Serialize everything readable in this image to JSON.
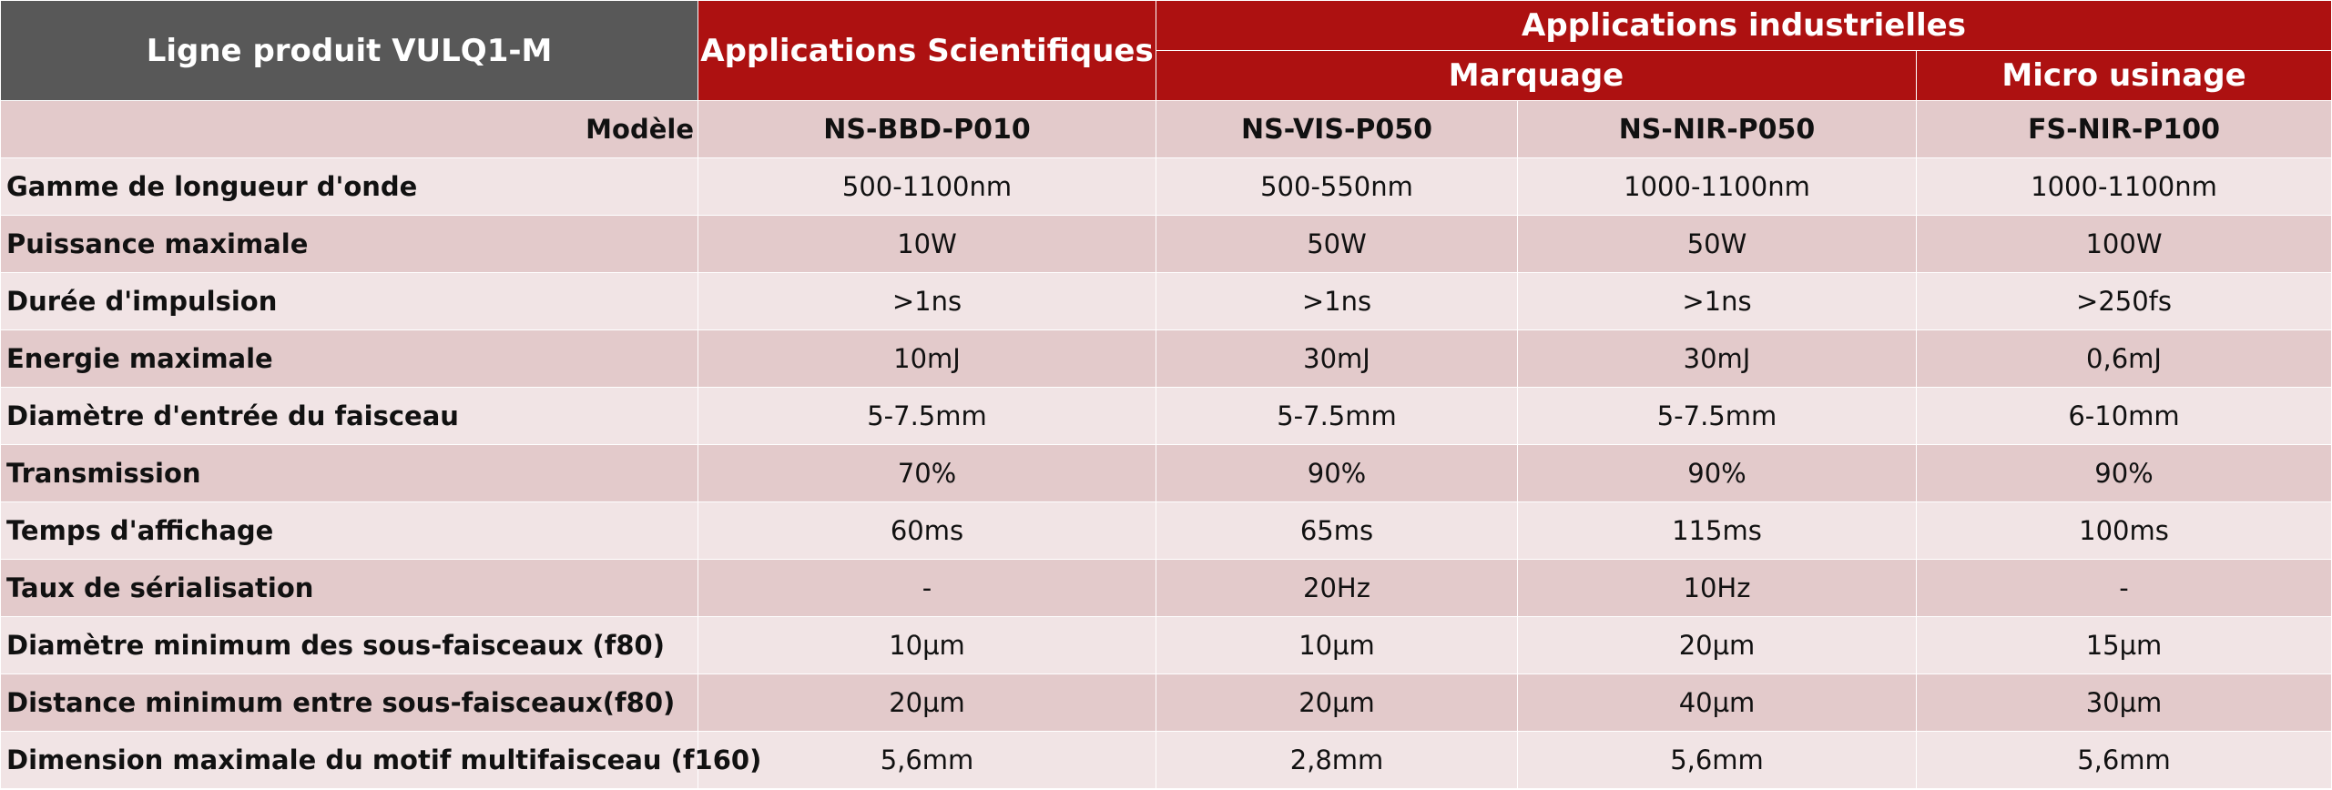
{
  "header": {
    "product_line": "Ligne produit VULQ1-M",
    "scientific": "Applications Scientifiques",
    "industrial": "Applications industrielles",
    "marking": "Marquage",
    "micro": "Micro usinage"
  },
  "model_row": {
    "label": "Modèle",
    "models": [
      "NS-BBD-P010",
      "NS-VIS-P050",
      "NS-NIR-P050",
      "FS-NIR-P100"
    ]
  },
  "rows": [
    {
      "label": "Gamme de longueur d'onde",
      "values": [
        "500-1100nm",
        "500-550nm",
        "1000-1100nm",
        "1000-1100nm"
      ]
    },
    {
      "label": "Puissance maximale",
      "values": [
        "10W",
        "50W",
        "50W",
        "100W"
      ]
    },
    {
      "label": "Durée d'impulsion",
      "values": [
        ">1ns",
        ">1ns",
        ">1ns",
        ">250fs"
      ]
    },
    {
      "label": "Energie maximale",
      "values": [
        "10mJ",
        "30mJ",
        "30mJ",
        "0,6mJ"
      ]
    },
    {
      "label": "Diamètre d'entrée du faisceau",
      "values": [
        "5-7.5mm",
        "5-7.5mm",
        "5-7.5mm",
        "6-10mm"
      ]
    },
    {
      "label": "Transmission",
      "values": [
        "70%",
        "90%",
        "90%",
        "90%"
      ]
    },
    {
      "label": "Temps d'affichage",
      "values": [
        "60ms",
        "65ms",
        "115ms",
        "100ms"
      ]
    },
    {
      "label": "Taux de sérialisation",
      "values": [
        "-",
        "20Hz",
        "10Hz",
        "-"
      ]
    },
    {
      "label": "Diamètre minimum des sous-faisceaux (f80)",
      "values": [
        "10µm",
        "10µm",
        "20µm",
        "15µm"
      ]
    },
    {
      "label": "Distance minimum entre sous-faisceaux(f80)",
      "values": [
        "20µm",
        "20µm",
        "40µm",
        "30µm"
      ]
    },
    {
      "label": "Dimension maximale du motif multifaisceau (f160)",
      "values": [
        "5,6mm",
        "2,8mm",
        "5,6mm",
        "5,6mm"
      ]
    }
  ],
  "colors": {
    "header_red": "#ad1111",
    "header_gray": "#585858",
    "row_dark": "#e3cacb",
    "row_light": "#f1e4e5"
  }
}
